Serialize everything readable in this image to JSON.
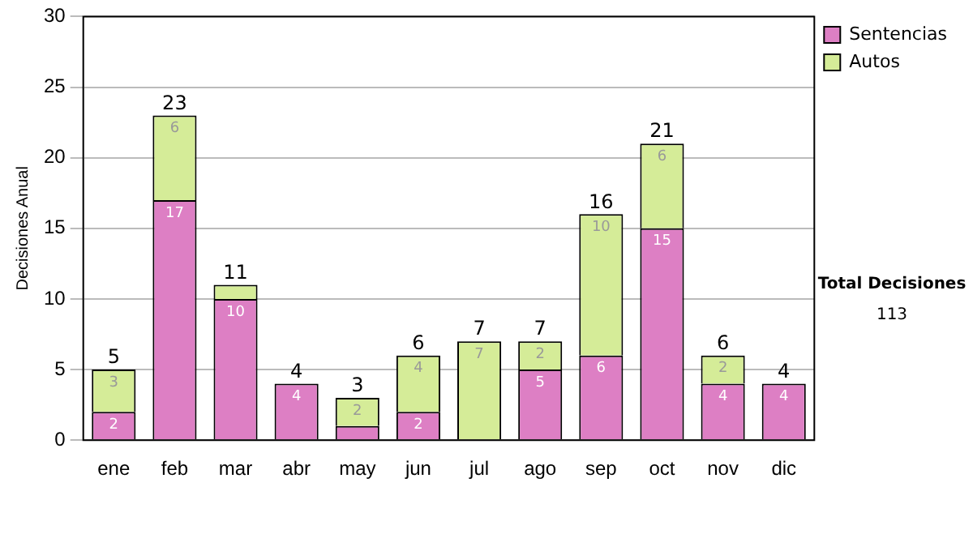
{
  "chart_data": {
    "type": "bar",
    "stacked": true,
    "ylabel": "Decisiones Anual",
    "categories": [
      "ene",
      "feb",
      "mar",
      "abr",
      "may",
      "jun",
      "jul",
      "ago",
      "sep",
      "oct",
      "nov",
      "dic"
    ],
    "series": [
      {
        "name": "Sentencias",
        "color": "#dd7fc4",
        "values": [
          2,
          17,
          10,
          4,
          1,
          2,
          0,
          5,
          6,
          15,
          4,
          4
        ],
        "value_labels": [
          "2",
          "17",
          "10",
          "4",
          null,
          "2",
          null,
          "5",
          "6",
          "15",
          "4",
          "4"
        ]
      },
      {
        "name": "Autos",
        "color": "#d5ec98",
        "values": [
          3,
          6,
          1,
          0,
          2,
          4,
          7,
          2,
          10,
          6,
          2,
          0
        ],
        "value_labels": [
          "3",
          "6",
          null,
          null,
          "2",
          "4",
          "7",
          "2",
          "10",
          "6",
          "2",
          null
        ]
      }
    ],
    "totals": [
      "5",
      "23",
      "11",
      "4",
      "3",
      "6",
      "7",
      "7",
      "16",
      "21",
      "6",
      "4"
    ],
    "ylim": [
      0,
      30
    ],
    "yticks": [
      0,
      5,
      10,
      15,
      20,
      25,
      30
    ],
    "grid": "y",
    "legend": "right",
    "annotations": [
      "Total Decisiones",
      "113"
    ]
  }
}
